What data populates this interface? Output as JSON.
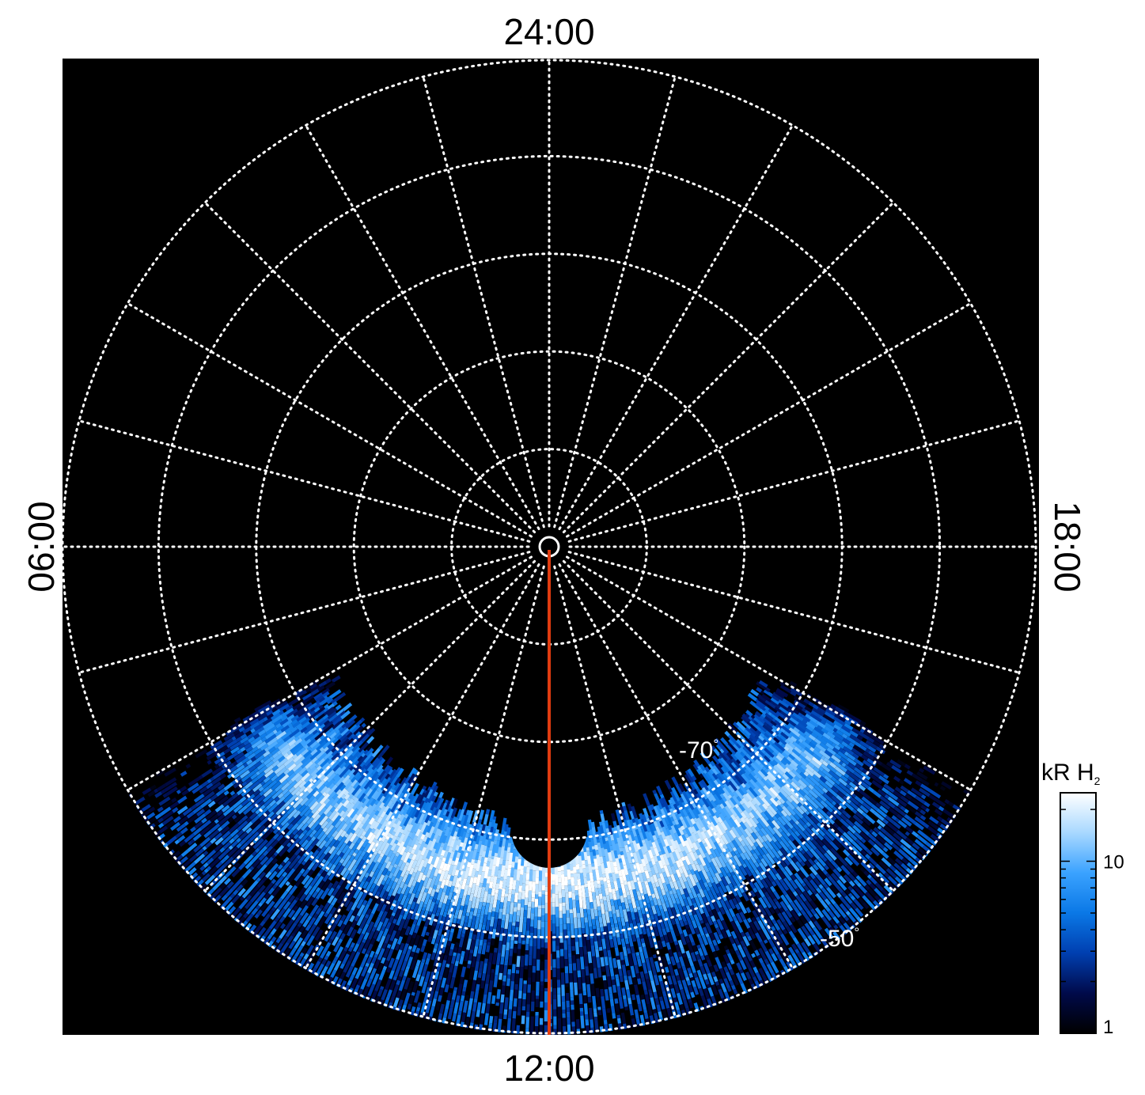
{
  "chart_data": {
    "type": "heatmap",
    "projection": "polar",
    "local_time_labels": {
      "top": "24:00",
      "bottom": "12:00",
      "left": "06:00",
      "right": "18:00"
    },
    "latitude_labels": [
      {
        "text": "-70",
        "unit": "°",
        "latitude": -70
      },
      {
        "text": "-50",
        "unit": "°",
        "latitude": -50
      }
    ],
    "grid": {
      "latitude_circles": [
        -80,
        -70,
        -60,
        -50,
        -40
      ],
      "local_time_spokes_hours": 1
    },
    "colorbar": {
      "title": "kR H",
      "title_subscript": "2",
      "scale": "log",
      "range": [
        1,
        25
      ],
      "ticks": [
        {
          "value": 10,
          "label": "10"
        },
        {
          "value": 1,
          "label": "1"
        }
      ],
      "colors": [
        "#000000",
        "#000a4a",
        "#003fb0",
        "#0a78e6",
        "#3aa2ff",
        "#a8d8ff",
        "#ffffff"
      ]
    },
    "highlight_meridian": {
      "local_time": "12:00",
      "color": "#e03c10"
    },
    "auroral_oval": {
      "peak_colatitude_deg": 34,
      "peak_intensity_kR": 22,
      "longitude_coverage_deg": [
        -62,
        62
      ],
      "equatorward_edge_deg": 50
    },
    "background_color": "#000000",
    "grid_color": "#ffffff"
  }
}
